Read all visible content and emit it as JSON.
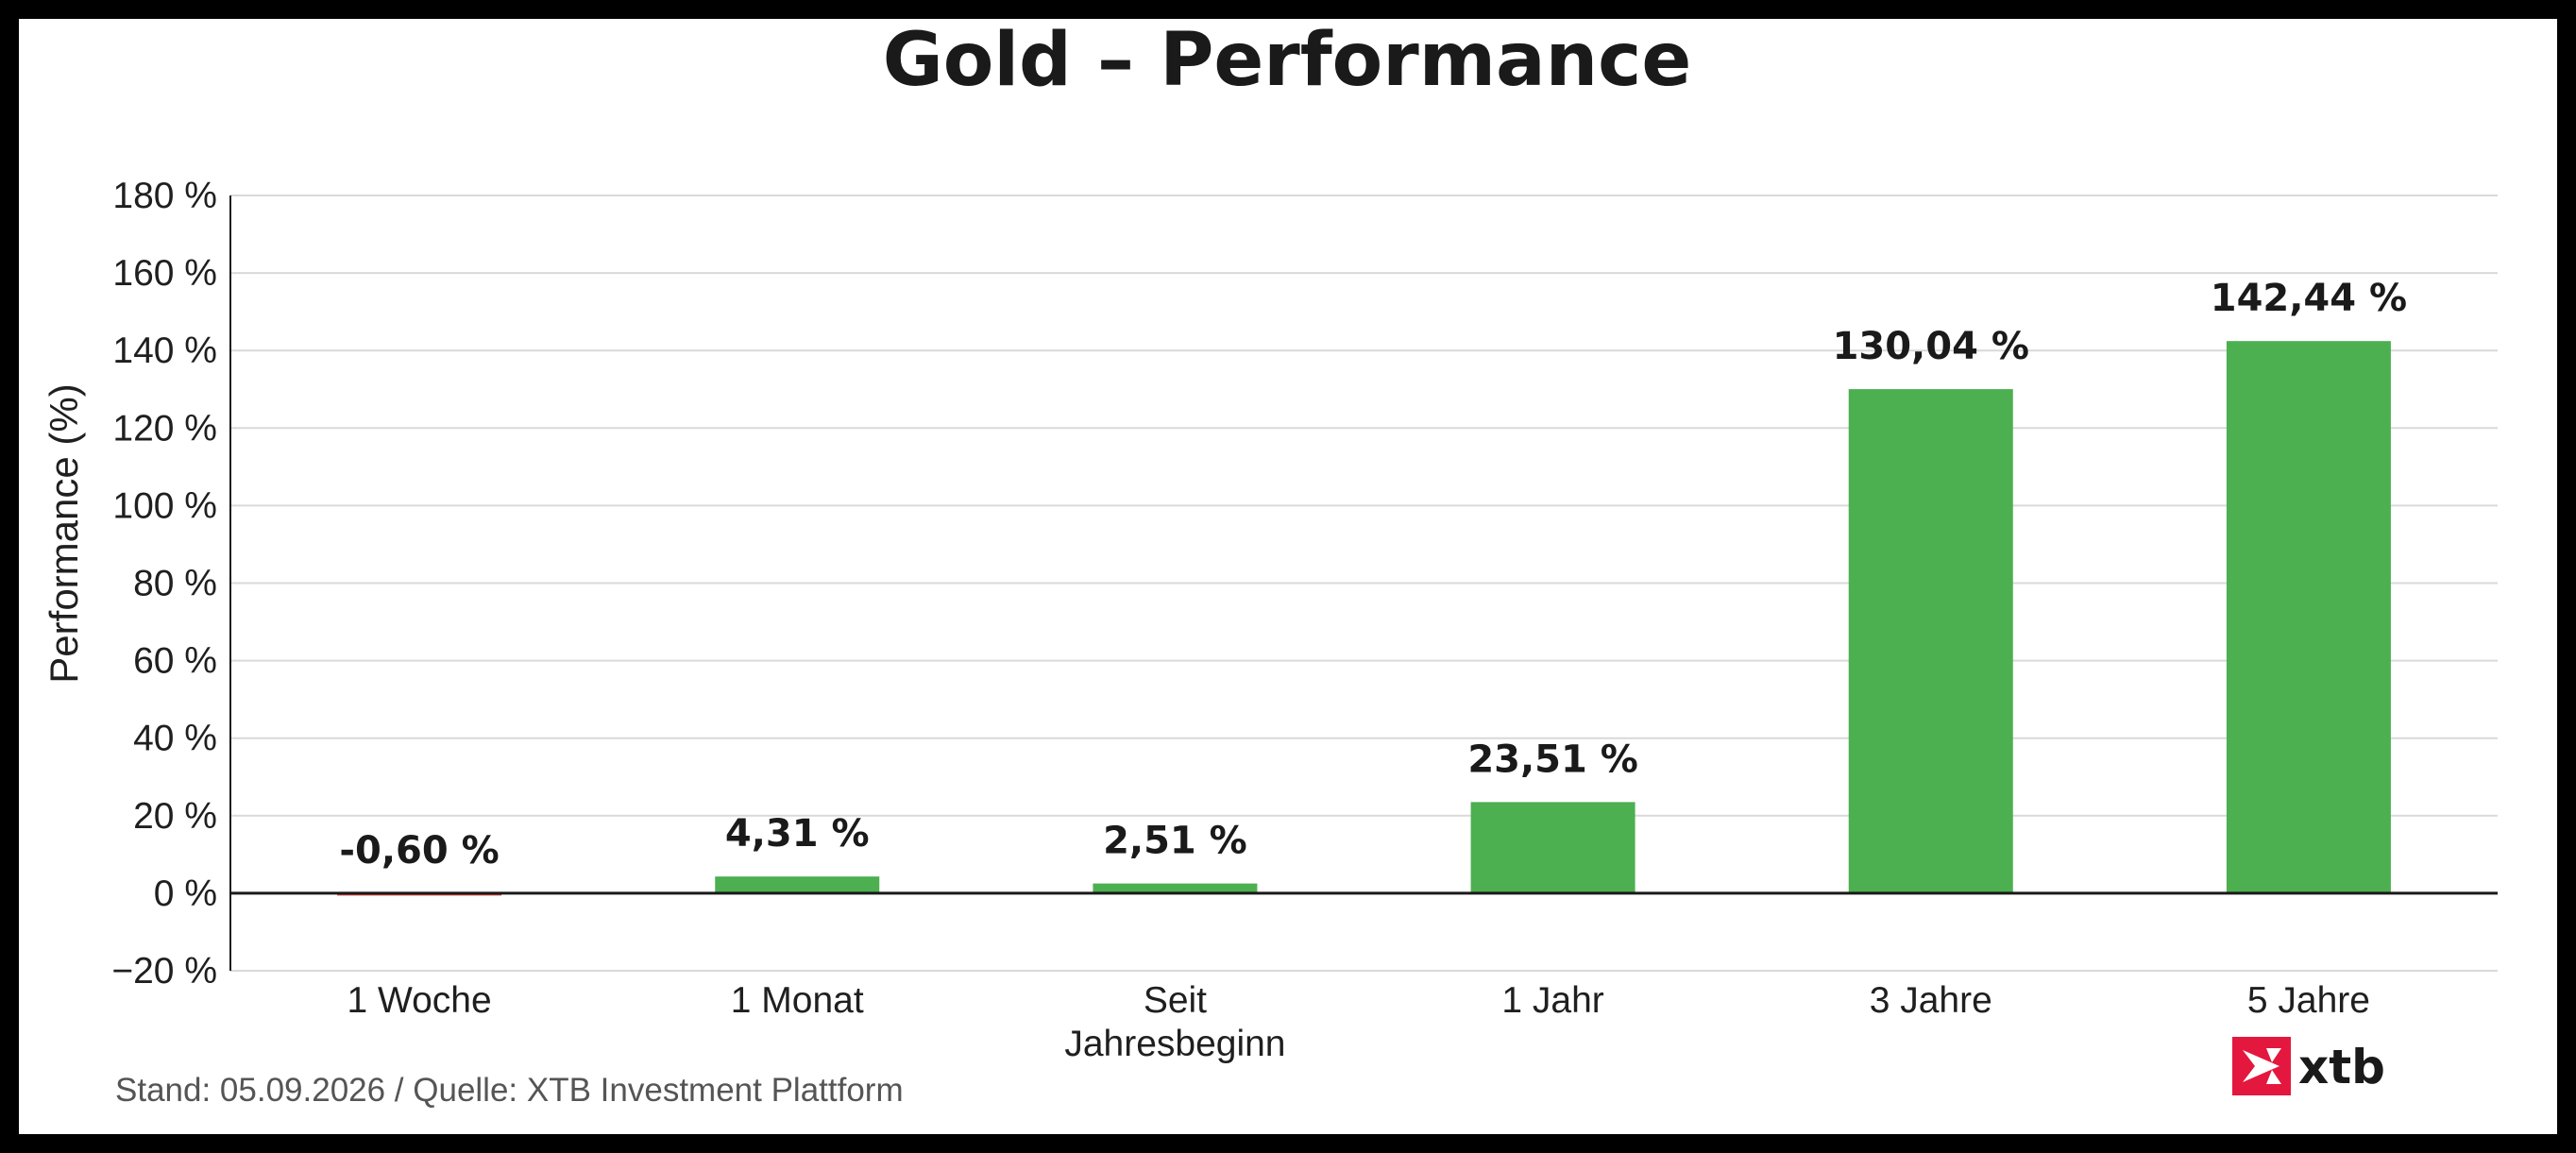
{
  "chart_data": {
    "type": "bar",
    "title": "Gold – Performance",
    "ylabel": "Performance (%)",
    "xlabel": "",
    "ylim": [
      -20,
      180
    ],
    "yticks": [
      -20,
      0,
      20,
      40,
      60,
      80,
      100,
      120,
      140,
      160,
      180
    ],
    "ytick_labels": [
      "−20 %",
      "0 %",
      "20 %",
      "40 %",
      "60 %",
      "80 %",
      "100 %",
      "120 %",
      "140 %",
      "160 %",
      "180 %"
    ],
    "grid": true,
    "legend": "none",
    "categories": [
      [
        "1 Woche"
      ],
      [
        "1 Monat"
      ],
      [
        "Seit",
        "Jahresbeginn"
      ],
      [
        "1 Jahr"
      ],
      [
        "3 Jahre"
      ],
      [
        "5 Jahre"
      ]
    ],
    "values": [
      -0.6,
      4.31,
      2.51,
      23.51,
      130.04,
      142.44
    ],
    "value_labels": [
      "-0,60 %",
      "4,31 %",
      "2,51 %",
      "23,51 %",
      "130,04 %",
      "142,44 %"
    ],
    "colors": {
      "positive": "#4caf50",
      "negative": "#d9433a",
      "grid": "#d9d9d9",
      "axis": "#1a1a1a",
      "background": "#ffffff",
      "frame": "#000000"
    }
  },
  "footer": {
    "source": "Stand: 05.09.2026 / Quelle: XTB Investment Plattform"
  },
  "logo": {
    "name": "xtb",
    "icon": "xtb-x-logo-icon",
    "color": "#e4173e"
  }
}
